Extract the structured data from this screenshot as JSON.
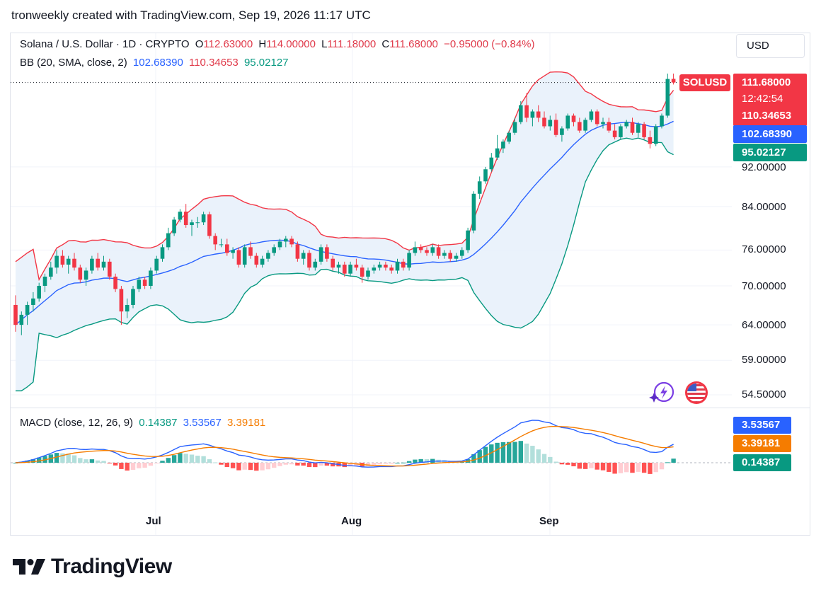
{
  "header": {
    "author": "tronweekly",
    "created_with": "created with TradingView.com,",
    "datetime": "Sep 19, 2026 11:17 UTC"
  },
  "symbol_legend": {
    "name": "Solana / U.S. Dollar · 1D · CRYPTO",
    "open_label": "O",
    "open": "112.63000",
    "high_label": "H",
    "high": "114.00000",
    "low_label": "L",
    "low": "111.18000",
    "close_label": "C",
    "close": "111.68000",
    "change": "−0.95000 (−0.84%)"
  },
  "bb_legend": {
    "label": "BB (20, SMA, close, 2)",
    "middle": "102.68390",
    "upper": "110.34653",
    "lower": "95.02127"
  },
  "macd_legend": {
    "label": "MACD (close, 12, 26, 9)",
    "histogram": "0.14387",
    "macd": "3.53567",
    "signal": "3.39181"
  },
  "currency_button": "USD",
  "price_badges": {
    "symbol": "SOLUSD",
    "last": "111.68000",
    "countdown": "12:42:54",
    "upper": "110.34653",
    "middle": "102.68390",
    "lower": "95.02127"
  },
  "macd_badges": {
    "macd": "3.53567",
    "signal": "3.39181",
    "histogram": "0.14387"
  },
  "y_ticks": [
    "92.00000",
    "84.00000",
    "76.00000",
    "70.00000",
    "64.00000",
    "59.00000",
    "54.50000"
  ],
  "x_ticks": [
    "Jul",
    "Aug",
    "Sep"
  ],
  "brand": "TradingView",
  "colors": {
    "up": "#089981",
    "down": "#f23645",
    "bb_upper": "#f23645",
    "bb_middle": "#2962ff",
    "bb_lower": "#089981",
    "bb_fill": "#e8f1fb",
    "macd": "#2962ff",
    "signal": "#f57c00",
    "badge_last": "#f23645",
    "badge_middle": "#2962ff",
    "badge_lower": "#089981"
  },
  "chart_data": {
    "type": "candlestick",
    "title": "Solana / U.S. Dollar · 1D · CRYPTO",
    "y_axis": "log",
    "x_labels": [
      "Jul",
      "Aug",
      "Sep"
    ],
    "y_range": [
      54.5,
      120
    ],
    "candles": [
      [
        67,
        68.5,
        63,
        64
      ],
      [
        64,
        66,
        62.5,
        65.5
      ],
      [
        65.5,
        67.5,
        64,
        67
      ],
      [
        67,
        69,
        66,
        68
      ],
      [
        68,
        70.5,
        67.5,
        70
      ],
      [
        70,
        72,
        69,
        71.5
      ],
      [
        71.5,
        74,
        71,
        73
      ],
      [
        73,
        76,
        72,
        75
      ],
      [
        75,
        76,
        73,
        73.5
      ],
      [
        73.5,
        75,
        72,
        74.5
      ],
      [
        74.5,
        75.5,
        72.5,
        73
      ],
      [
        73,
        73.5,
        70.5,
        71
      ],
      [
        71,
        73,
        70,
        72.5
      ],
      [
        72.5,
        75,
        72,
        74.5
      ],
      [
        74.5,
        75.5,
        72.5,
        73
      ],
      [
        73,
        75,
        72.5,
        74
      ],
      [
        74,
        74.5,
        71,
        71.5
      ],
      [
        71.5,
        72,
        69,
        69.5
      ],
      [
        69.5,
        70,
        64,
        66
      ],
      [
        66,
        68,
        65,
        67
      ],
      [
        67,
        70,
        66.5,
        69.5
      ],
      [
        69.5,
        71.5,
        69,
        71
      ],
      [
        71,
        71.5,
        69.5,
        70
      ],
      [
        70,
        73,
        69.5,
        72.5
      ],
      [
        72.5,
        75,
        72,
        74.5
      ],
      [
        74.5,
        77,
        74,
        76.5
      ],
      [
        76.5,
        80,
        76,
        79
      ],
      [
        79,
        82,
        78.5,
        81.5
      ],
      [
        81.5,
        83.5,
        81,
        83
      ],
      [
        83,
        84.5,
        80,
        80.5
      ],
      [
        80.5,
        81.5,
        78.5,
        81
      ],
      [
        81,
        82,
        80,
        81
      ],
      [
        81,
        83,
        80.5,
        82.5
      ],
      [
        82.5,
        83,
        78,
        78.5
      ],
      [
        78.5,
        79,
        76,
        77
      ],
      [
        77,
        78,
        76.5,
        77
      ],
      [
        77,
        78,
        75,
        75.5
      ],
      [
        75.5,
        76.5,
        74.5,
        76
      ],
      [
        76,
        76.5,
        73,
        73.5
      ],
      [
        73.5,
        77,
        73,
        76.5
      ],
      [
        76.5,
        77.5,
        74.5,
        75
      ],
      [
        75,
        75.5,
        73,
        73.5
      ],
      [
        73.5,
        75,
        73,
        74.5
      ],
      [
        74.5,
        76,
        74,
        75.5
      ],
      [
        75.5,
        77,
        75,
        76.5
      ],
      [
        76.5,
        78,
        76,
        77.5
      ],
      [
        77.5,
        78.5,
        76.5,
        78
      ],
      [
        78,
        78.5,
        76.5,
        77
      ],
      [
        77,
        77.5,
        74,
        74.5
      ],
      [
        74.5,
        76,
        73.5,
        75.5
      ],
      [
        75.5,
        76,
        72.5,
        73
      ],
      [
        73,
        74.5,
        72.5,
        74
      ],
      [
        74,
        77,
        73.5,
        76.5
      ],
      [
        76.5,
        77,
        74,
        74.5
      ],
      [
        74.5,
        75,
        72.5,
        73
      ],
      [
        73,
        74,
        72,
        73.5
      ],
      [
        73.5,
        74,
        71.5,
        72
      ],
      [
        72,
        74,
        71.5,
        73.5
      ],
      [
        73.5,
        74.5,
        72.5,
        73
      ],
      [
        73,
        73.5,
        70.5,
        71.5
      ],
      [
        71.5,
        73,
        71,
        72.5
      ],
      [
        72.5,
        73.5,
        72,
        73
      ],
      [
        73,
        74,
        72.5,
        73.5
      ],
      [
        73.5,
        74,
        72.5,
        73
      ],
      [
        73,
        73.5,
        72,
        72.5
      ],
      [
        72.5,
        74.5,
        72,
        74
      ],
      [
        74,
        74.5,
        72.5,
        73
      ],
      [
        73,
        76,
        72.5,
        75.5
      ],
      [
        75.5,
        77.5,
        75,
        76.5
      ],
      [
        76.5,
        77,
        75.5,
        76
      ],
      [
        76,
        76.5,
        75,
        75.5
      ],
      [
        75.5,
        77,
        75,
        76.5
      ],
      [
        76.5,
        77,
        74.5,
        75
      ],
      [
        75,
        76,
        74.5,
        75.5
      ],
      [
        75.5,
        76,
        74,
        74.5
      ],
      [
        74.5,
        75.5,
        74,
        75
      ],
      [
        75,
        76.5,
        74.5,
        76
      ],
      [
        76,
        80,
        75.5,
        79.5
      ],
      [
        79.5,
        87,
        79,
        86.5
      ],
      [
        86.5,
        90,
        85.5,
        89
      ],
      [
        89,
        92,
        88.5,
        91.5
      ],
      [
        91.5,
        95,
        91,
        94
      ],
      [
        94,
        99,
        93.5,
        96
      ],
      [
        96,
        98,
        95,
        97.5
      ],
      [
        97.5,
        100,
        97,
        99.5
      ],
      [
        99.5,
        103,
        99,
        102
      ],
      [
        102,
        107,
        101.5,
        106
      ],
      [
        106,
        109,
        102,
        103
      ],
      [
        103,
        105,
        101,
        104.5
      ],
      [
        104.5,
        106,
        102,
        103
      ],
      [
        103,
        104.5,
        100.5,
        101
      ],
      [
        101,
        103.5,
        100,
        102.5
      ],
      [
        102.5,
        104,
        98.5,
        99
      ],
      [
        99,
        101,
        97.5,
        100.5
      ],
      [
        100.5,
        104,
        100,
        103.5
      ],
      [
        103.5,
        104,
        101,
        102
      ],
      [
        102,
        103,
        99.5,
        100
      ],
      [
        100,
        103,
        99.5,
        102.5
      ],
      [
        102.5,
        105,
        102,
        104.5
      ],
      [
        104.5,
        105,
        101,
        101.5
      ],
      [
        101.5,
        103,
        100.5,
        102
      ],
      [
        102,
        103,
        99.5,
        100
      ],
      [
        100,
        101.5,
        98,
        98.5
      ],
      [
        98.5,
        101.5,
        98,
        101
      ],
      [
        101,
        102.5,
        100.5,
        102
      ],
      [
        102,
        103,
        99,
        99.5
      ],
      [
        99.5,
        102,
        98.5,
        101.5
      ],
      [
        101.5,
        102,
        98,
        98.5
      ],
      [
        98.5,
        100,
        96,
        97
      ],
      [
        97,
        101.5,
        96.5,
        101
      ],
      [
        101,
        104,
        100.5,
        103.5
      ],
      [
        103.5,
        114,
        103,
        112.6
      ],
      [
        112.63,
        114,
        111.18,
        111.68
      ]
    ],
    "bollinger": {
      "period": 20,
      "stddev": 2,
      "upper_last": 110.34653,
      "middle_last": 102.6839,
      "lower_last": 95.02127
    },
    "macd": {
      "fast": 12,
      "slow": 26,
      "signal": 9,
      "macd_last": 3.53567,
      "signal_last": 3.39181,
      "histogram_last": 0.14387
    }
  }
}
